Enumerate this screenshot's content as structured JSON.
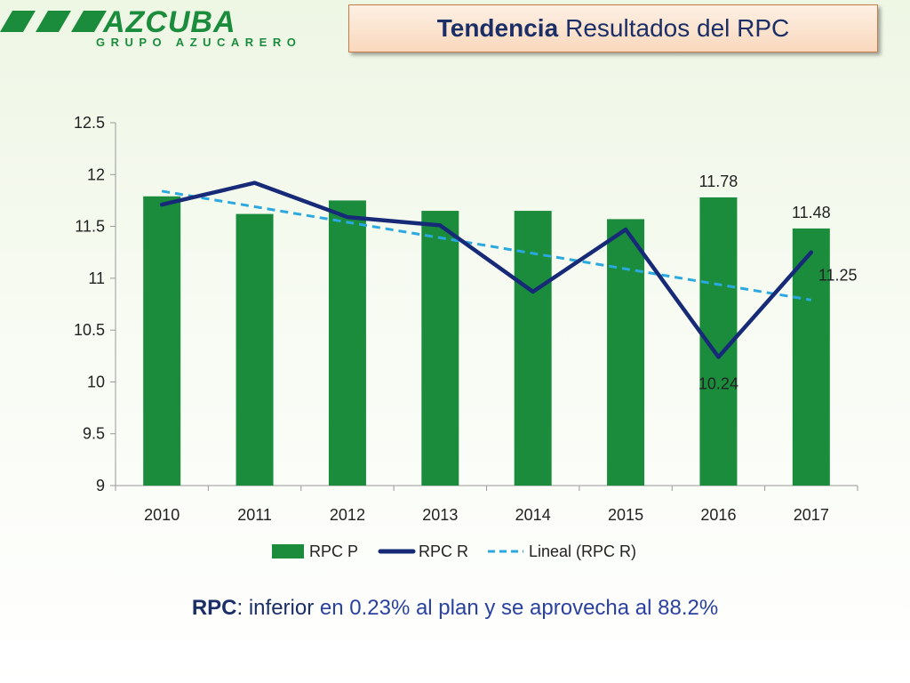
{
  "header": {
    "logo_text": "AZCUBA",
    "logo_subtitle": "GRUPO AZUCARERO",
    "title_bold": "Tendencia",
    "title_rest": "Resultados del RPC"
  },
  "colors": {
    "bar": "#1a8c3c",
    "line": "#172a78",
    "trend": "#2ba8df",
    "brand": "#1a8c3c",
    "title_text": "#1b2f66"
  },
  "footer": {
    "term": "RPC",
    "sep": ":",
    "rest": " inferior",
    "detail": " en 0.23%  al  plan y  se  aprovecha  al  88.2%"
  },
  "chart_data": {
    "type": "bar",
    "categories": [
      "2010",
      "2011",
      "2012",
      "2013",
      "2014",
      "2015",
      "2016",
      "2017"
    ],
    "series": [
      {
        "name": "RPC P",
        "type": "bar",
        "values": [
          11.79,
          11.62,
          11.75,
          11.65,
          11.65,
          11.57,
          11.78,
          11.48
        ]
      },
      {
        "name": "RPC R",
        "type": "line",
        "values": [
          11.71,
          11.92,
          11.59,
          11.51,
          10.87,
          11.47,
          10.24,
          11.25
        ]
      },
      {
        "name": "Lineal (RPC R)",
        "type": "trendline",
        "values": [
          11.84,
          11.69,
          11.54,
          11.39,
          11.24,
          11.09,
          10.94,
          10.79
        ]
      }
    ],
    "yticks": [
      "9",
      "9.5",
      "10",
      "10.5",
      "11",
      "11.5",
      "12",
      "12.5"
    ],
    "ylim": [
      9,
      12.5
    ],
    "grid": false,
    "legend": "bottom",
    "data_labels": [
      {
        "series": "RPC P",
        "index": 6,
        "text": "11.78"
      },
      {
        "series": "RPC P",
        "index": 7,
        "text": "11.48"
      },
      {
        "series": "RPC R",
        "index": 6,
        "text": "10.24"
      },
      {
        "series": "RPC R",
        "index": 7,
        "text": "11.25"
      }
    ],
    "title": "",
    "xlabel": "",
    "ylabel": ""
  }
}
